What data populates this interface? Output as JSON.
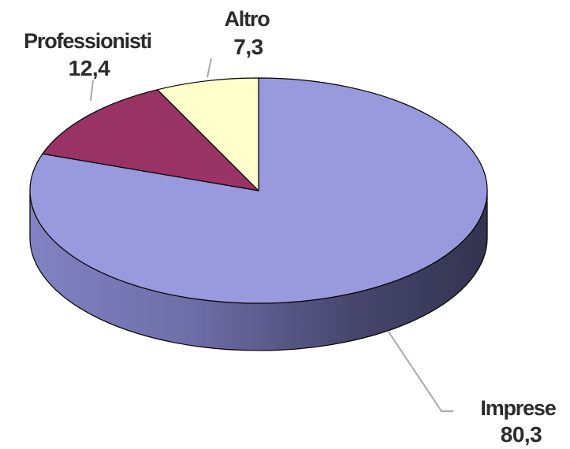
{
  "chart_data": {
    "type": "pie",
    "title": "",
    "style": "3d",
    "slices": [
      {
        "label": "Imprese",
        "value": 80.3,
        "value_text": "80,3",
        "color": "#9999dd",
        "side_color": "#6b6ba8"
      },
      {
        "label": "Professionisti",
        "value": 12.4,
        "value_text": "12,4",
        "color": "#993366",
        "side_color": "#6a2244"
      },
      {
        "label": "Altro",
        "value": 7.3,
        "value_text": "7,3",
        "color": "#ffffcc",
        "side_color": "#c8c89a"
      }
    ]
  }
}
